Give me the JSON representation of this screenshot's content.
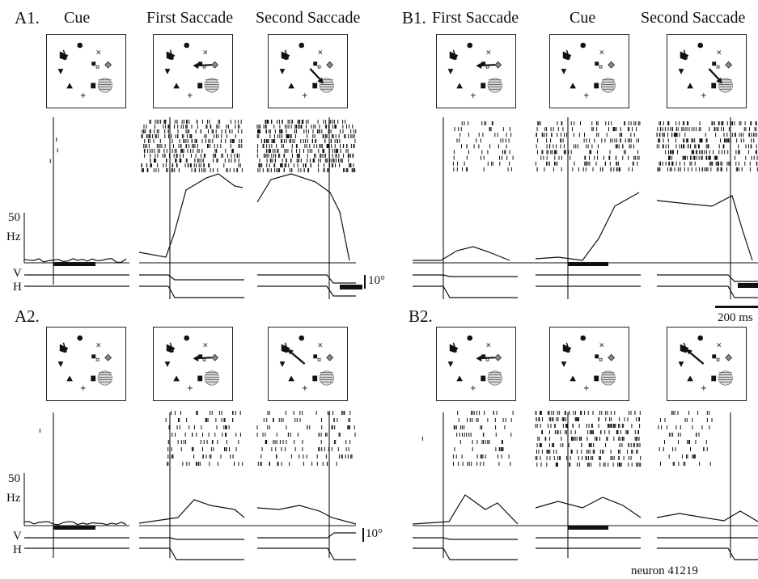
{
  "figure": {
    "panels": {
      "a1": "A1.",
      "a2": "A2.",
      "b1": "B1.",
      "b2": "B2."
    },
    "column_titles": {
      "a_cue": "Cue",
      "a_first": "First Saccade",
      "a_second": "Second Saccade",
      "b_first": "First Saccade",
      "b_cue": "Cue",
      "b_second": "Second Saccade"
    },
    "rate_scale": {
      "value": "50",
      "unit": "Hz"
    },
    "eye_traces": {
      "vertical": "V",
      "horizontal": "H"
    },
    "eye_scale": "10°",
    "time_scale": "200 ms",
    "neuron": "neuron 41219"
  }
}
